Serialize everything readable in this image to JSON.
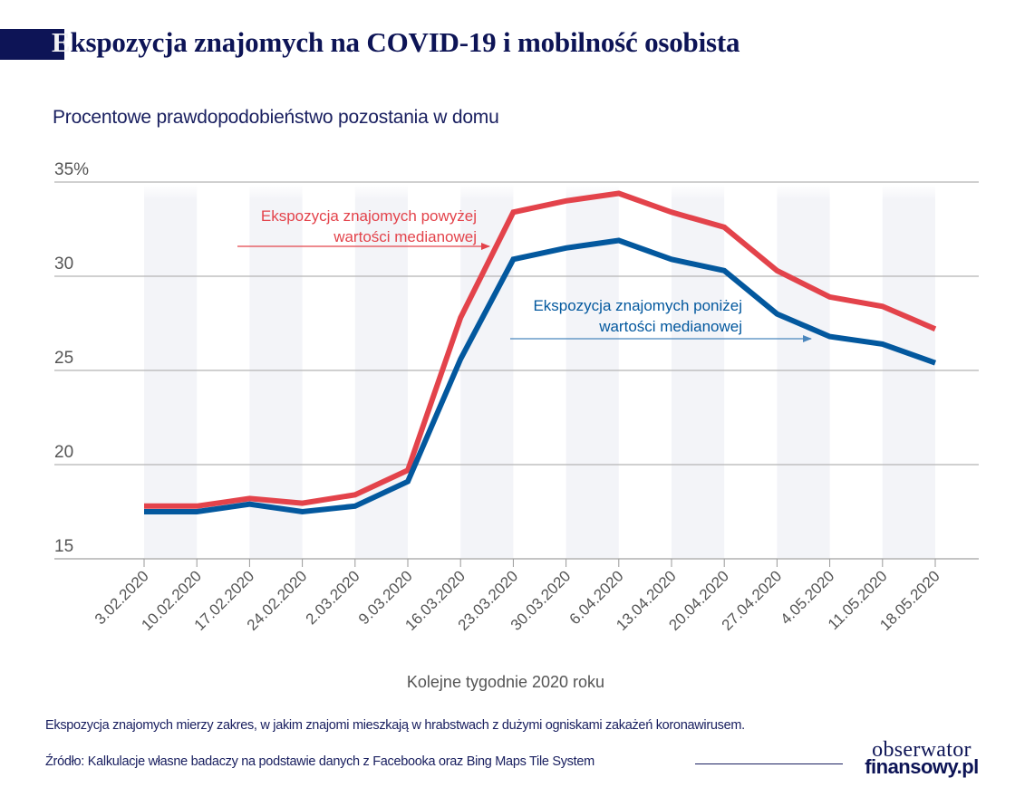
{
  "header": {
    "title_first_letter": "E",
    "title_rest": "kspozycja znajomych na COVID-19 i mobilność osobista",
    "subtitle": "Procentowe prawdopodobieństwo pozostania w domu"
  },
  "chart_data": {
    "type": "line",
    "title": "Ekspozycja znajomych na COVID-19 i mobilność osobista",
    "subtitle": "Procentowe prawdopodobieństwo pozostania w domu",
    "xlabel": "Kolejne tygodnie 2020 roku",
    "ylabel": "",
    "ylim": [
      15,
      35
    ],
    "yticks": [
      15,
      20,
      25,
      30,
      35
    ],
    "ytick_labels": [
      "15",
      "20",
      "25",
      "30",
      "35%"
    ],
    "grid": "horizontal",
    "categories": [
      "3.02.2020",
      "10.02.2020",
      "17.02.2020",
      "24.02.2020",
      "2.03.2020",
      "9.03.2020",
      "16.03.2020",
      "23.03.2020",
      "30.03.2020",
      "6.04.2020",
      "13.04.2020",
      "20.04.2020",
      "27.04.2020",
      "4.05.2020",
      "11.05.2020",
      "18.05.2020"
    ],
    "series": [
      {
        "name": "Ekspozycja znajomych powyżej wartości medianowej",
        "label_line1": "Ekspozycja znajomych powyżej",
        "label_line2": "wartości medianowej",
        "color": "#e3434b",
        "values": [
          17.8,
          17.8,
          18.2,
          17.95,
          18.4,
          19.7,
          27.8,
          33.4,
          34.0,
          34.4,
          33.4,
          32.6,
          30.3,
          28.9,
          28.4,
          27.2
        ]
      },
      {
        "name": "Ekspozycja znajomych poniżej wartości medianowej",
        "label_line1": "Ekspozycja znajomych poniżej",
        "label_line2": "wartości medianowej",
        "color": "#03589e",
        "values": [
          17.5,
          17.5,
          17.9,
          17.5,
          17.8,
          19.1,
          25.6,
          30.9,
          31.5,
          31.9,
          30.9,
          30.3,
          28.0,
          26.8,
          26.4,
          25.4
        ]
      }
    ],
    "legend": "inline-annotations"
  },
  "footer": {
    "note": "Ekspozycja znajomych mierzy zakres, w jakim znajomi mieszkają w hrabstwach z dużymi ogniskami zakażeń koronawirusem.",
    "source": "Źródło: Kalkulacje własne badaczy na podstawie danych z Facebooka oraz Bing Maps Tile System",
    "logo_line1": "obserwator",
    "logo_line2": "finansowy.pl"
  },
  "colors": {
    "navy": "#0d1456",
    "red": "#e3434b",
    "blue": "#03589e",
    "band": "#f3f4f8",
    "grid": "#b5b5b5",
    "axis_text": "#555555"
  }
}
